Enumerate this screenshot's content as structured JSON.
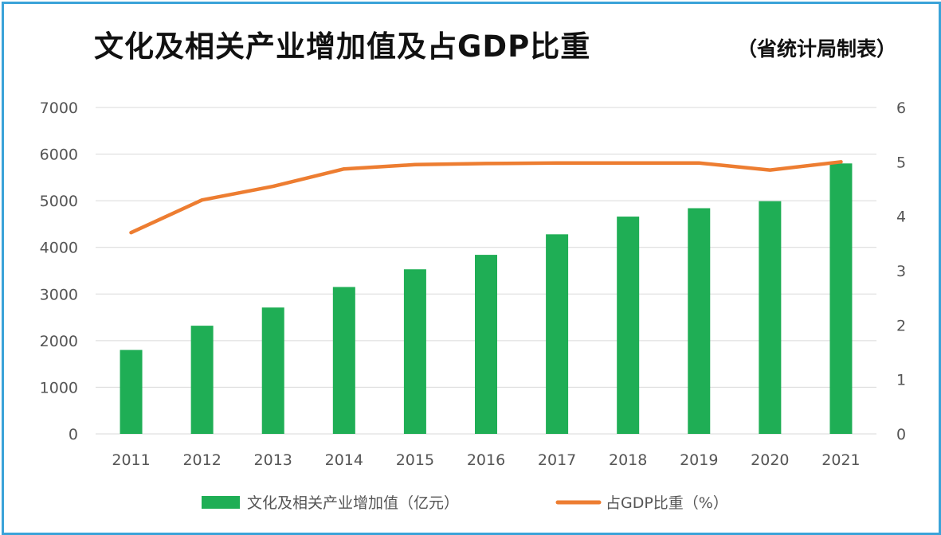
{
  "header": {
    "title": "文化及相关产业增加值及占GDP比重",
    "source": "（省统计局制表）"
  },
  "chart_data": {
    "type": "bar",
    "title": "文化及相关产业增加值及占GDP比重",
    "categories": [
      "2011",
      "2012",
      "2013",
      "2014",
      "2015",
      "2016",
      "2017",
      "2018",
      "2019",
      "2020",
      "2021"
    ],
    "series": [
      {
        "name": "文化及相关产业增加值（亿元）",
        "type": "bar",
        "axis": "left",
        "color": "#1fae55",
        "values": [
          1800,
          2320,
          2710,
          3150,
          3530,
          3840,
          4280,
          4660,
          4840,
          4990,
          5800
        ]
      },
      {
        "name": "占GDP比重（%）",
        "type": "line",
        "axis": "right",
        "color": "#ed7d31",
        "values": [
          3.7,
          4.3,
          4.55,
          4.87,
          4.95,
          4.97,
          4.98,
          4.98,
          4.98,
          4.85,
          5.0
        ]
      }
    ],
    "y_left": {
      "min": 0,
      "max": 7000,
      "ticks": [
        0,
        1000,
        2000,
        3000,
        4000,
        5000,
        6000,
        7000
      ]
    },
    "y_right": {
      "min": 0,
      "max": 6,
      "ticks": [
        0,
        1,
        2,
        3,
        4,
        5,
        6
      ]
    },
    "grid": true,
    "legend": "bottom-center"
  }
}
